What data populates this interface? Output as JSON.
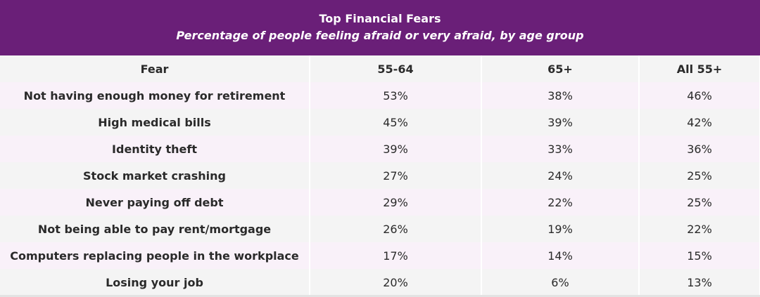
{
  "chart_data": {
    "type": "table",
    "title": "Top Financial Fears",
    "subtitle": "Percentage of people feeling afraid or very afraid, by age group",
    "columns": [
      "Fear",
      "55-64",
      "65+",
      "All 55+"
    ],
    "rows": [
      {
        "label": "Not having enough money for retirement",
        "values": [
          "53%",
          "38%",
          "46%"
        ]
      },
      {
        "label": "High medical bills",
        "values": [
          "45%",
          "39%",
          "42%"
        ]
      },
      {
        "label": "Identity theft",
        "values": [
          "39%",
          "33%",
          "36%"
        ]
      },
      {
        "label": "Stock market crashing",
        "values": [
          "27%",
          "24%",
          "25%"
        ]
      },
      {
        "label": "Never paying off debt",
        "values": [
          "29%",
          "22%",
          "25%"
        ]
      },
      {
        "label": "Not being able to pay rent/mortgage",
        "values": [
          "26%",
          "19%",
          "22%"
        ]
      },
      {
        "label": "Computers replacing people in the workplace",
        "values": [
          "17%",
          "14%",
          "15%"
        ]
      },
      {
        "label": "Losing your job",
        "values": [
          "20%",
          "6%",
          "13%"
        ]
      }
    ]
  },
  "colors": {
    "header_bg": "#6a1f78",
    "row_odd": "#f9f1f9",
    "row_even": "#f4f4f4"
  }
}
